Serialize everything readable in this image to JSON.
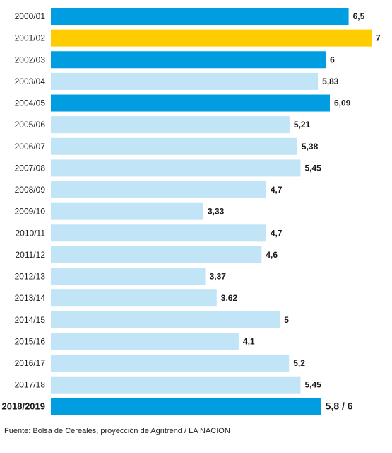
{
  "chart_data": {
    "type": "bar",
    "orientation": "horizontal",
    "categories": [
      "2000/01",
      "2001/02",
      "2002/03",
      "2003/04",
      "2004/05",
      "2005/06",
      "2006/07",
      "2007/08",
      "2008/09",
      "2009/10",
      "2010/11",
      "2011/12",
      "2012/13",
      "2013/14",
      "2014/15",
      "2015/16",
      "2016/17",
      "2017/18",
      "2018/2019"
    ],
    "values": [
      6.5,
      7,
      6,
      5.83,
      6.09,
      5.21,
      5.38,
      5.45,
      4.7,
      3.33,
      4.7,
      4.6,
      3.37,
      3.62,
      5,
      4.1,
      5.2,
      5.45,
      5.9
    ],
    "value_labels": [
      "6,5",
      "7",
      "6",
      "5,83",
      "6,09",
      "5,21",
      "5,38",
      "5,45",
      "4,7",
      "3,33",
      "4,7",
      "4,6",
      "3,37",
      "3,62",
      "5",
      "4,1",
      "5,2",
      "5,45",
      "5,8 / 6"
    ],
    "bar_colors": [
      "#009ee0",
      "#ffcc00",
      "#009ee0",
      "#c2e4f7",
      "#009ee0",
      "#c2e4f7",
      "#c2e4f7",
      "#c2e4f7",
      "#c2e4f7",
      "#c2e4f7",
      "#c2e4f7",
      "#c2e4f7",
      "#c2e4f7",
      "#c2e4f7",
      "#c2e4f7",
      "#c2e4f7",
      "#c2e4f7",
      "#c2e4f7",
      "#009ee0"
    ],
    "highlight_category": "2018/2019",
    "title": "",
    "xlabel": "",
    "ylabel": "",
    "xlim": [
      0,
      7
    ],
    "grid": false,
    "legend": "none"
  },
  "footer": {
    "source": "Fuente: Bolsa de Cereales, proyección de Agritrend  / LA NACION"
  }
}
